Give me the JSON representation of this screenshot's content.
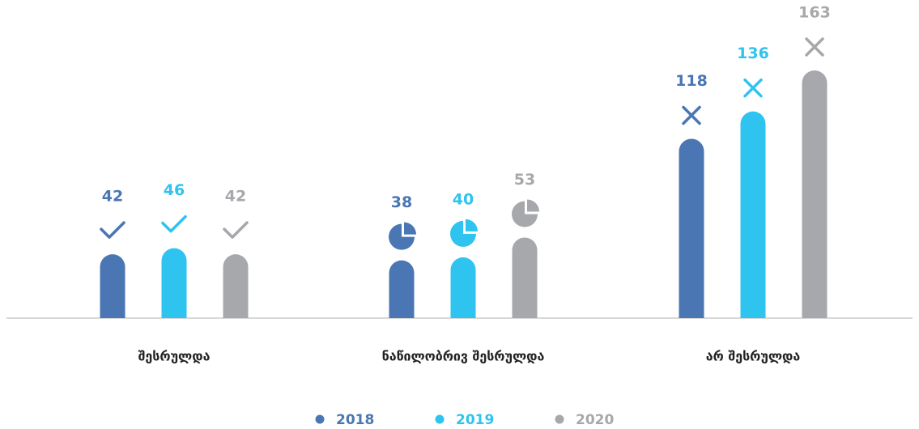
{
  "chart_data": {
    "type": "bar",
    "categories": [
      "შესრულდა",
      "ნაწილობრივ შესრულდა",
      "არ შესრულდა"
    ],
    "series": [
      {
        "name": "2018",
        "color": "#4a76b4",
        "values": [
          42,
          38,
          118
        ]
      },
      {
        "name": "2019",
        "color": "#2ec4ef",
        "values": [
          46,
          40,
          136
        ]
      },
      {
        "name": "2020",
        "color": "#a7a8ab",
        "values": [
          42,
          53,
          163
        ]
      }
    ],
    "legend": "bottom"
  }
}
